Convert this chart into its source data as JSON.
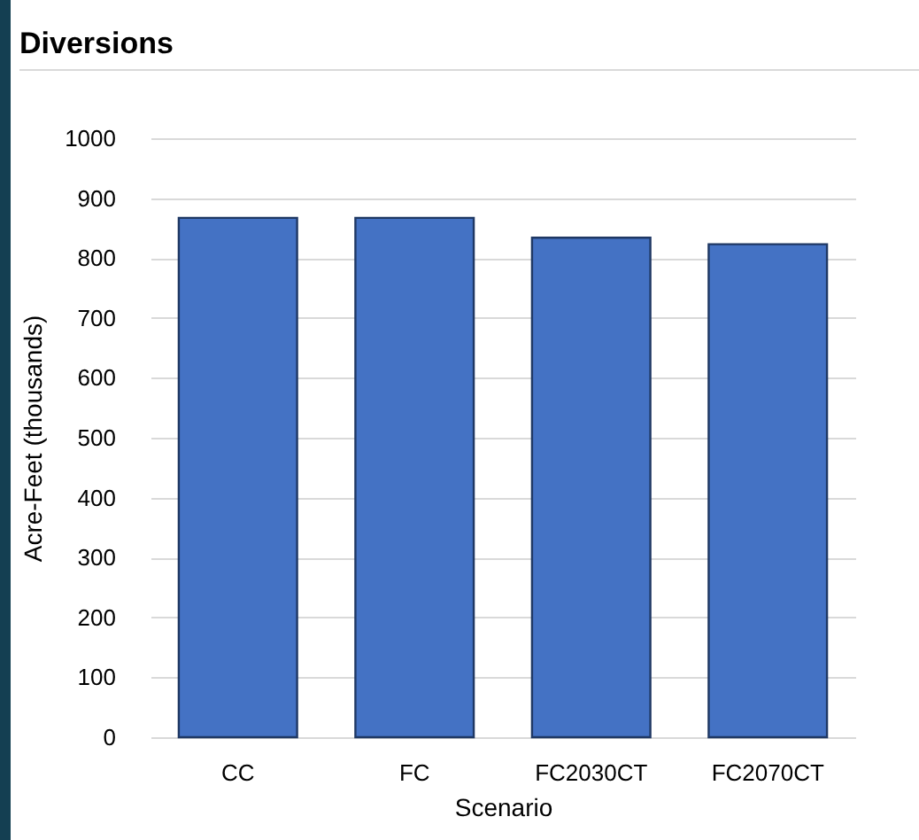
{
  "chart_data": {
    "type": "bar",
    "title": "Diversions",
    "xlabel": "Scenario",
    "ylabel": "Acre-Feet (thousands)",
    "categories": [
      "CC",
      "FC",
      "FC2030CT",
      "FC2070CT"
    ],
    "series": [
      {
        "color": "#4472c4",
        "values": [
          867,
          867,
          834,
          823
        ]
      }
    ],
    "ylim": [
      0,
      1000
    ],
    "yticks": [
      0,
      100,
      200,
      300,
      400,
      500,
      600,
      700,
      800,
      900,
      1000
    ],
    "grid": "y",
    "legend": false
  }
}
